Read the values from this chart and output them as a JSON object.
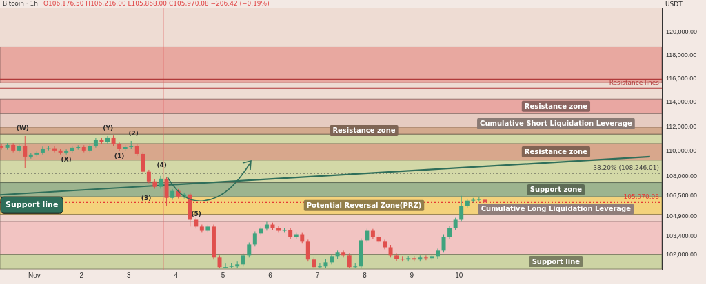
{
  "chart_data": {
    "type": "candlestick",
    "title": "Bitcoin · 1h",
    "subtitle": "O106,176.50 H106,216.00 L105,868.00 C105,970.08 −206.42 (−0.19%)",
    "ylabel": "USDT",
    "log": true,
    "xlim": [
      0.27,
      14.3
    ],
    "xticks": [
      {
        "value": 1,
        "label": "Nov"
      },
      2,
      3,
      4,
      5,
      6,
      7,
      8,
      9,
      10
    ],
    "ylim": [
      100900,
      122100
    ],
    "yticks": [
      {
        "value": 120000,
        "label": "120,000.00"
      },
      {
        "value": 118000,
        "label": "118,000.00"
      },
      {
        "value": 116000,
        "label": "116,000.00"
      },
      {
        "value": 114000,
        "label": "114,000.00"
      },
      {
        "value": 112000,
        "label": "112,000.00"
      },
      {
        "value": 110000,
        "label": "110,000.00"
      },
      {
        "value": 108000,
        "label": "108,000.00"
      },
      {
        "value": 106500,
        "label": "106,500.00"
      },
      {
        "value": 104900,
        "label": "104,900.00"
      },
      {
        "value": 103400,
        "label": "103,400.00"
      },
      {
        "value": 102000,
        "label": "102,000.00"
      }
    ],
    "series": [
      {
        "type": "candlestick",
        "x": [
          0.3,
          0.425,
          0.55,
          0.675,
          0.8,
          0.925,
          1.05,
          1.175,
          1.3,
          1.425,
          1.55,
          1.675,
          1.8,
          1.925,
          2.05,
          2.175,
          2.3,
          2.425,
          2.55,
          2.675,
          2.8,
          2.925,
          3.05,
          3.175,
          3.3,
          3.425,
          3.55,
          3.675,
          3.8,
          3.925,
          4.05,
          4.175,
          4.3,
          4.425,
          4.55,
          4.675,
          4.8,
          4.925,
          5.05,
          5.175,
          5.3,
          5.425,
          5.55,
          5.675,
          5.8,
          5.925,
          6.05,
          6.175,
          6.3,
          6.425,
          6.55,
          6.675,
          6.8,
          6.925,
          7.05,
          7.175,
          7.3,
          7.425,
          7.55,
          7.675,
          7.8,
          7.925,
          8.05,
          8.175,
          8.3,
          8.425,
          8.55,
          8.675,
          8.8,
          8.925,
          9.05,
          9.175,
          9.3,
          9.425,
          9.55,
          9.675,
          9.8,
          9.925,
          10.05,
          10.175,
          10.3,
          10.425,
          10.55
        ],
        "ohlc": [
          [
            110440,
            110590,
            110130,
            110280
          ],
          [
            110280,
            110650,
            110130,
            110500
          ],
          [
            110500,
            110650,
            109910,
            110060
          ],
          [
            110060,
            110540,
            109910,
            110390
          ],
          [
            110390,
            111220,
            108640,
            109560
          ],
          [
            109560,
            109880,
            109410,
            109730
          ],
          [
            109730,
            110040,
            109580,
            109890
          ],
          [
            109890,
            110370,
            109740,
            110220
          ],
          [
            110220,
            110390,
            110070,
            110240
          ],
          [
            110240,
            110390,
            109910,
            110060
          ],
          [
            110060,
            110210,
            109740,
            109890
          ],
          [
            109890,
            110150,
            109740,
            110000
          ],
          [
            110000,
            110430,
            109850,
            110280
          ],
          [
            110280,
            110480,
            110130,
            110330
          ],
          [
            110330,
            110480,
            109910,
            110060
          ],
          [
            110060,
            110590,
            109910,
            110440
          ],
          [
            110440,
            111090,
            110290,
            110940
          ],
          [
            110940,
            111090,
            110570,
            110720
          ],
          [
            110720,
            111220,
            110570,
            111110
          ],
          [
            111110,
            111260,
            110400,
            110550
          ],
          [
            110550,
            110700,
            110020,
            110170
          ],
          [
            110170,
            110480,
            110020,
            110330
          ],
          [
            110330,
            110830,
            110180,
            110440
          ],
          [
            110440,
            110590,
            109630,
            109780
          ],
          [
            109780,
            109930,
            108220,
            108370
          ],
          [
            108370,
            108520,
            107460,
            107610
          ],
          [
            107610,
            107760,
            107030,
            107180
          ],
          [
            107180,
            108040,
            107030,
            107820
          ],
          [
            107820,
            107970,
            105690,
            106320
          ],
          [
            106320,
            107010,
            106170,
            106860
          ],
          [
            106860,
            107010,
            106280,
            106430
          ],
          [
            106430,
            106740,
            106280,
            106590
          ],
          [
            106590,
            106740,
            104120,
            104640
          ],
          [
            104640,
            104790,
            103970,
            104120
          ],
          [
            104120,
            104270,
            103650,
            103800
          ],
          [
            103800,
            104270,
            103650,
            104120
          ],
          [
            104120,
            104270,
            101650,
            101800
          ],
          [
            101800,
            101950,
            101000,
            101040
          ],
          [
            101040,
            101350,
            101000,
            101060
          ],
          [
            101060,
            101400,
            101000,
            101140
          ],
          [
            101140,
            101500,
            101000,
            101290
          ],
          [
            101290,
            102100,
            101140,
            101950
          ],
          [
            101950,
            102920,
            101800,
            102770
          ],
          [
            102770,
            103750,
            102620,
            103600
          ],
          [
            103600,
            104110,
            103450,
            103960
          ],
          [
            103960,
            104480,
            103810,
            104270
          ],
          [
            104270,
            104420,
            103860,
            104010
          ],
          [
            104010,
            104160,
            103650,
            103800
          ],
          [
            103800,
            104010,
            103650,
            103860
          ],
          [
            103860,
            104010,
            103190,
            103340
          ],
          [
            103340,
            103640,
            103190,
            103490
          ],
          [
            103490,
            103640,
            102830,
            102980
          ],
          [
            102980,
            103130,
            101500,
            101650
          ],
          [
            101650,
            101800,
            101000,
            101040
          ],
          [
            101040,
            101400,
            101000,
            101140
          ],
          [
            101140,
            101700,
            101000,
            101440
          ],
          [
            101440,
            102000,
            101290,
            101850
          ],
          [
            101850,
            102310,
            101700,
            102160
          ],
          [
            102160,
            102310,
            101800,
            101950
          ],
          [
            101950,
            102100,
            101000,
            101040
          ],
          [
            101040,
            101400,
            101000,
            101140
          ],
          [
            101140,
            103230,
            100990,
            103080
          ],
          [
            103080,
            103960,
            102930,
            103800
          ],
          [
            103800,
            103950,
            103190,
            103340
          ],
          [
            103340,
            103490,
            102830,
            102980
          ],
          [
            102980,
            103130,
            102410,
            102560
          ],
          [
            102560,
            102710,
            101800,
            101950
          ],
          [
            101950,
            102100,
            101550,
            101700
          ],
          [
            101700,
            101850,
            101500,
            101650
          ],
          [
            101650,
            101900,
            101500,
            101750
          ],
          [
            101750,
            101900,
            101500,
            101650
          ],
          [
            101650,
            101950,
            101500,
            101800
          ],
          [
            101800,
            101950,
            101600,
            101750
          ],
          [
            101750,
            102000,
            101600,
            101850
          ],
          [
            101850,
            102460,
            101700,
            102310
          ],
          [
            102310,
            103490,
            102160,
            103340
          ],
          [
            103340,
            104160,
            103190,
            104010
          ],
          [
            104010,
            104790,
            103860,
            104640
          ],
          [
            104640,
            106480,
            104490,
            105690
          ],
          [
            105690,
            106260,
            105540,
            106110
          ],
          [
            106110,
            106320,
            105960,
            106170
          ],
          [
            106170,
            106370,
            106020,
            106220
          ],
          [
            106176.5,
            106216.0,
            105868.0,
            105970.08
          ]
        ],
        "colors": [
          "#e0504d",
          "#3fa37e",
          "#e0504d",
          "#3fa37e",
          "#e0504d",
          "#3fa37e",
          "#3fa37e",
          "#3fa37e",
          "#3fa37e",
          "#e0504d",
          "#e0504d",
          "#3fa37e",
          "#3fa37e",
          "#3fa37e",
          "#e0504d",
          "#3fa37e",
          "#3fa37e",
          "#e0504d",
          "#3fa37e",
          "#e0504d",
          "#e0504d",
          "#3fa37e",
          "#3fa37e",
          "#e0504d",
          "#e0504d",
          "#e0504d",
          "#e0504d",
          "#3fa37e",
          "#e0504d",
          "#3fa37e",
          "#e0504d",
          "#3fa37e",
          "#e0504d",
          "#e0504d",
          "#e0504d",
          "#3fa37e",
          "#e0504d",
          "#e0504d",
          "#3fa37e",
          "#3fa37e",
          "#3fa37e",
          "#3fa37e",
          "#3fa37e",
          "#3fa37e",
          "#3fa37e",
          "#3fa37e",
          "#e0504d",
          "#e0504d",
          "#3fa37e",
          "#e0504d",
          "#3fa37e",
          "#e0504d",
          "#e0504d",
          "#e0504d",
          "#3fa37e",
          "#3fa37e",
          "#3fa37e",
          "#3fa37e",
          "#e0504d",
          "#e0504d",
          "#3fa37e",
          "#3fa37e",
          "#3fa37e",
          "#e0504d",
          "#e0504d",
          "#e0504d",
          "#e0504d",
          "#e0504d",
          "#e0504d",
          "#3fa37e",
          "#e0504d",
          "#3fa37e",
          "#e0504d",
          "#3fa37e",
          "#3fa37e",
          "#3fa37e",
          "#3fa37e",
          "#3fa37e",
          "#3fa37e",
          "#3fa37e",
          "#3fa37e",
          "#3fa37e",
          "#e0504d"
        ]
      },
      {
        "type": "line",
        "name": "Support line",
        "color": "#2f6e5a",
        "x": [
          0.27,
          14.05
        ],
        "values": [
          106560,
          109560
        ]
      }
    ],
    "bands": [
      {
        "axis": "y",
        "from": 102000,
        "to": 104520,
        "color": "#f2c4c2"
      },
      {
        "axis": "y",
        "from": 111380,
        "to": 113070,
        "color": "#e6cbc1",
        "label": "Cumulative Short Liquidation Leverage"
      },
      {
        "axis": "y",
        "from": 104520,
        "to": 106400,
        "color": "#f0d2cc",
        "label": "Cumulative Long Liquidation Leverage"
      },
      {
        "axis": "y",
        "from": 115640,
        "to": 118690,
        "color": "#e8a8a0"
      },
      {
        "axis": "y",
        "from": 113070,
        "to": 114260,
        "color": "#e9a7a2",
        "label": "Resistance zone"
      },
      {
        "axis": "y",
        "from": 107510,
        "to": 111380,
        "color": "#d3d8a7"
      },
      {
        "axis": "y",
        "from": 111380,
        "to": 111950,
        "color": "#d3a98d",
        "label": "Resistance zone"
      },
      {
        "axis": "y",
        "from": 109290,
        "to": 110610,
        "color": "#d8a78c",
        "label": "Resistance zone"
      },
      {
        "axis": "y",
        "from": 106400,
        "to": 107510,
        "color": "#9db48f",
        "label": "Support zone"
      },
      {
        "axis": "y",
        "from": 105060,
        "to": 106400,
        "color": "#f4d27c",
        "label": "Potential Reversal Zone(PRZ)"
      },
      {
        "axis": "y",
        "from": 100950,
        "to": 102000,
        "color": "#cdd4a4",
        "label": "Support line"
      }
    ],
    "ref_lines": [
      {
        "axis": "x",
        "value": 3.73,
        "color": "#e06464"
      },
      {
        "axis": "y",
        "value": 115930,
        "color": "#b03a3a"
      },
      {
        "axis": "y",
        "value": 115180,
        "color": "#b03a3a",
        "label": "Resistance lines"
      },
      {
        "axis": "y",
        "value": 108246.01,
        "color": "#444444",
        "line_style": "dotted",
        "label": "38.20% (108,246.01)"
      },
      {
        "axis": "y",
        "value": 105970.08,
        "color": "#e53935",
        "line_style": "dotted",
        "label": "105,970.08"
      }
    ],
    "annotations": [
      {
        "text": "(W)",
        "x": 0.75,
        "y": 111830
      },
      {
        "text": "(Y)",
        "x": 2.56,
        "y": 111830
      },
      {
        "text": "(X)",
        "x": 1.675,
        "y": 109740
      },
      {
        "text": "(1)",
        "x": 2.8,
        "y": 110020
      },
      {
        "text": "(2)",
        "x": 3.1,
        "y": 111390
      },
      {
        "text": "(3)",
        "x": 3.37,
        "y": 106270
      },
      {
        "text": "(4)",
        "x": 3.7,
        "y": 108850
      },
      {
        "text": "(5)",
        "x": 4.43,
        "y": 105060
      }
    ]
  }
}
